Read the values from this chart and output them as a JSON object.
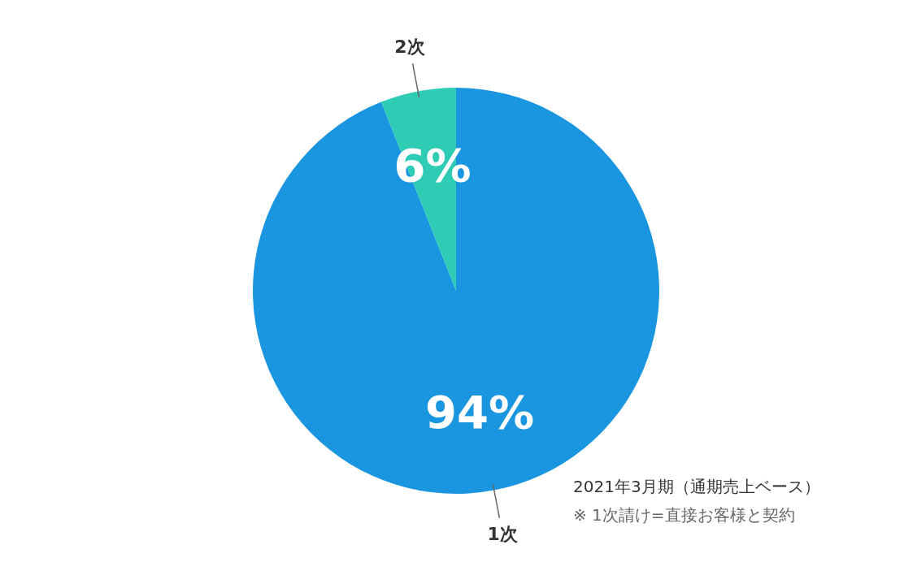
{
  "chart_data": {
    "type": "pie",
    "categories": [
      "1次",
      "2次"
    ],
    "values": [
      94,
      6
    ],
    "colors": [
      "#1a96e0",
      "#2ecbb5"
    ],
    "value_labels": [
      "94%",
      "6%"
    ],
    "annotations": [
      "2021年3月期（通期売上ベース）",
      "※ 1次請け=直接お客様と契約"
    ]
  }
}
